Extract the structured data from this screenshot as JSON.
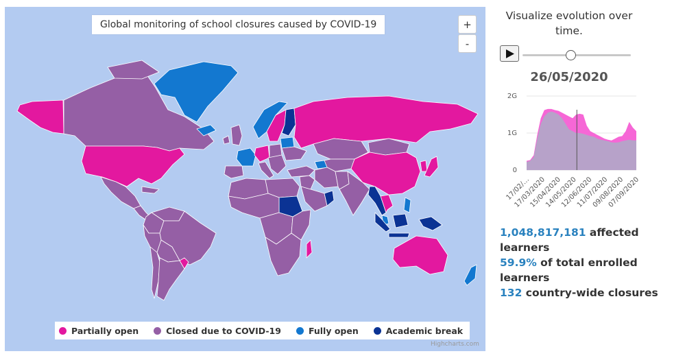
{
  "map": {
    "title": "Global monitoring of school closures caused by COVID-19",
    "zoom_in_label": "+",
    "zoom_out_label": "-",
    "credits": "Highcharts.com",
    "ocean_color": "#b3cbf1",
    "status_colors": {
      "partially_open": "#e3189f",
      "closed": "#955fa5",
      "fully_open": "#1378d0",
      "academic_break": "#0b3394",
      "no_data": "#ffffff"
    },
    "legend": [
      {
        "label": "Partially open",
        "color": "#e3189f"
      },
      {
        "label": "Closed due to COVID-19",
        "color": "#955fa5"
      },
      {
        "label": "Fully open",
        "color": "#1378d0"
      },
      {
        "label": "Academic break",
        "color": "#0b3394"
      }
    ],
    "regions": [
      {
        "name": "Alaska",
        "status": "partially_open"
      },
      {
        "name": "Canada",
        "status": "closed"
      },
      {
        "name": "Greenland",
        "status": "fully_open"
      },
      {
        "name": "United States",
        "status": "partially_open"
      },
      {
        "name": "Mexico",
        "status": "closed"
      },
      {
        "name": "Central America",
        "status": "closed"
      },
      {
        "name": "Cuba",
        "status": "closed"
      },
      {
        "name": "Venezuela",
        "status": "closed"
      },
      {
        "name": "Colombia",
        "status": "closed"
      },
      {
        "name": "Brazil",
        "status": "closed"
      },
      {
        "name": "Peru",
        "status": "closed"
      },
      {
        "name": "Bolivia",
        "status": "closed"
      },
      {
        "name": "Chile",
        "status": "closed"
      },
      {
        "name": "Argentina",
        "status": "closed"
      },
      {
        "name": "Uruguay",
        "status": "partially_open"
      },
      {
        "name": "Iceland",
        "status": "fully_open"
      },
      {
        "name": "Ireland",
        "status": "closed"
      },
      {
        "name": "United Kingdom",
        "status": "closed"
      },
      {
        "name": "Norway",
        "status": "fully_open"
      },
      {
        "name": "Sweden",
        "status": "partially_open"
      },
      {
        "name": "Finland",
        "status": "academic_break"
      },
      {
        "name": "France",
        "status": "fully_open"
      },
      {
        "name": "Spain",
        "status": "closed"
      },
      {
        "name": "Germany",
        "status": "partially_open"
      },
      {
        "name": "Poland",
        "status": "closed"
      },
      {
        "name": "Italy",
        "status": "closed"
      },
      {
        "name": "Balkans",
        "status": "closed"
      },
      {
        "name": "Belarus",
        "status": "fully_open"
      },
      {
        "name": "Ukraine",
        "status": "closed"
      },
      {
        "name": "Russia",
        "status": "partially_open"
      },
      {
        "name": "Turkey",
        "status": "closed"
      },
      {
        "name": "Caucasus",
        "status": "fully_open"
      },
      {
        "name": "Kazakhstan",
        "status": "closed"
      },
      {
        "name": "Central Asia",
        "status": "closed"
      },
      {
        "name": "Mongolia",
        "status": "closed"
      },
      {
        "name": "China",
        "status": "partially_open"
      },
      {
        "name": "Korea",
        "status": "partially_open"
      },
      {
        "name": "Japan",
        "status": "partially_open"
      },
      {
        "name": "Middle East",
        "status": "closed"
      },
      {
        "name": "Saudi Arabia",
        "status": "closed"
      },
      {
        "name": "Iran",
        "status": "closed"
      },
      {
        "name": "Oman",
        "status": "academic_break"
      },
      {
        "name": "Pakistan",
        "status": "closed"
      },
      {
        "name": "India",
        "status": "closed"
      },
      {
        "name": "Myanmar Thailand",
        "status": "academic_break"
      },
      {
        "name": "Vietnam",
        "status": "partially_open"
      },
      {
        "name": "Philippines",
        "status": "fully_open"
      },
      {
        "name": "Malaysia",
        "status": "fully_open"
      },
      {
        "name": "Sumatra",
        "status": "academic_break"
      },
      {
        "name": "Java",
        "status": "academic_break"
      },
      {
        "name": "Borneo",
        "status": "academic_break"
      },
      {
        "name": "New Guinea",
        "status": "academic_break"
      },
      {
        "name": "North Africa",
        "status": "closed"
      },
      {
        "name": "Libya Egypt",
        "status": "closed"
      },
      {
        "name": "Sudan",
        "status": "academic_break"
      },
      {
        "name": "Sahel West Africa",
        "status": "closed"
      },
      {
        "name": "Central Africa",
        "status": "closed"
      },
      {
        "name": "East Africa",
        "status": "closed"
      },
      {
        "name": "Southern Africa",
        "status": "closed"
      },
      {
        "name": "Madagascar",
        "status": "partially_open"
      },
      {
        "name": "Australia",
        "status": "partially_open"
      },
      {
        "name": "New Zealand",
        "status": "fully_open"
      }
    ]
  },
  "side": {
    "title": "Visualize evolution over time.",
    "current_date": "26/05/2020",
    "slider_position": 0.44,
    "stats": {
      "affected_value": "1,048,817,181",
      "affected_label": " affected learners",
      "percent_value": "59.9%",
      "percent_label": " of total enrolled learners",
      "closures_value": "132",
      "closures_label": " country-wide closures"
    }
  },
  "chart_data": {
    "type": "area",
    "y_tick_labels": [
      "0",
      "1G",
      "2G"
    ],
    "ylim": [
      0,
      2000000000
    ],
    "x_tick_labels": [
      "17/02/…",
      "17/03/2020",
      "15/04/2020",
      "14/05/2020",
      "12/06/2020",
      "11/07/2020",
      "09/08/2020",
      "07/09/2020"
    ],
    "current_marker_label": "26/05/2020",
    "series": [
      {
        "name": "Partially open",
        "color": "#f667d6",
        "x": [
          "17/02/2020",
          "24/02/2020",
          "02/03/2020",
          "09/03/2020",
          "16/03/2020",
          "23/03/2020",
          "30/03/2020",
          "06/04/2020",
          "13/04/2020",
          "20/04/2020",
          "27/04/2020",
          "04/05/2020",
          "11/05/2020",
          "18/05/2020",
          "25/05/2020",
          "01/06/2020",
          "08/06/2020",
          "15/06/2020",
          "22/06/2020",
          "29/06/2020",
          "06/07/2020",
          "13/07/2020",
          "20/07/2020",
          "27/07/2020",
          "03/08/2020",
          "10/08/2020",
          "17/08/2020",
          "24/08/2020",
          "31/08/2020",
          "07/09/2020",
          "14/09/2020",
          "21/09/2020"
        ],
        "values": [
          250000000.0,
          270000000.0,
          400000000.0,
          950000000.0,
          1400000000.0,
          1620000000.0,
          1650000000.0,
          1650000000.0,
          1620000000.0,
          1600000000.0,
          1550000000.0,
          1500000000.0,
          1450000000.0,
          1400000000.0,
          1500000000.0,
          1520000000.0,
          1500000000.0,
          1200000000.0,
          1050000000.0,
          1000000000.0,
          950000000.0,
          900000000.0,
          850000000.0,
          820000000.0,
          800000000.0,
          850000000.0,
          900000000.0,
          920000000.0,
          1050000000.0,
          1300000000.0,
          1150000000.0,
          1050000000.0
        ]
      },
      {
        "name": "Closed due to COVID-19",
        "color": "#b7a2c9",
        "x": [
          "17/02/2020",
          "24/02/2020",
          "02/03/2020",
          "09/03/2020",
          "16/03/2020",
          "23/03/2020",
          "30/03/2020",
          "06/04/2020",
          "13/04/2020",
          "20/04/2020",
          "27/04/2020",
          "04/05/2020",
          "11/05/2020",
          "18/05/2020",
          "25/05/2020",
          "01/06/2020",
          "08/06/2020",
          "15/06/2020",
          "22/06/2020",
          "29/06/2020",
          "06/07/2020",
          "13/07/2020",
          "20/07/2020",
          "27/07/2020",
          "03/08/2020",
          "10/08/2020",
          "17/08/2020",
          "24/08/2020",
          "31/08/2020",
          "07/09/2020",
          "14/09/2020",
          "21/09/2020"
        ],
        "values": [
          220000000.0,
          250000000.0,
          350000000.0,
          850000000.0,
          1250000000.0,
          1450000000.0,
          1550000000.0,
          1580000000.0,
          1550000000.0,
          1500000000.0,
          1400000000.0,
          1250000000.0,
          1100000000.0,
          1050000000.0,
          1000000000.0,
          1000000000.0,
          980000000.0,
          950000000.0,
          920000000.0,
          900000000.0,
          850000000.0,
          820000000.0,
          800000000.0,
          780000000.0,
          750000000.0,
          740000000.0,
          750000000.0,
          780000000.0,
          800000000.0,
          820000000.0,
          800000000.0,
          800000000.0
        ]
      }
    ]
  }
}
